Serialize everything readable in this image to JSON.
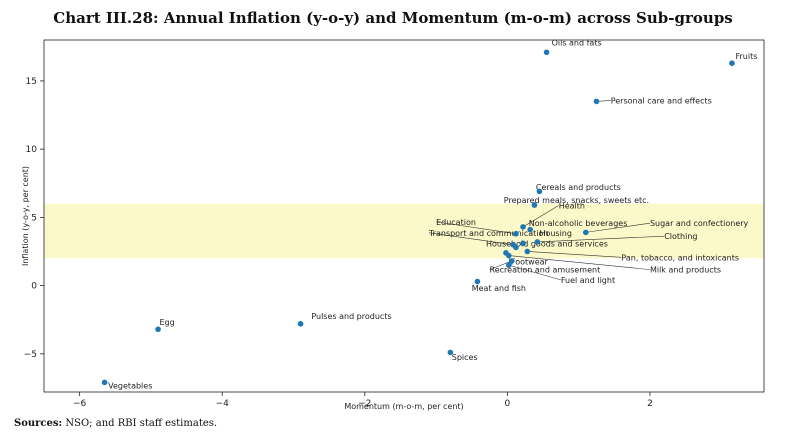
{
  "header": {
    "title": "Chart III.28: Annual Inflation (y-o-y) and Momentum (m-o-m) across Sub-groups"
  },
  "footer": {
    "sources_label": "Sources:",
    "sources_text": " NSO; and RBI staff estimates."
  },
  "colors": {
    "point": "#1f77b4",
    "band": "#fbf8c9",
    "axis": "#222222",
    "leader": "#333333"
  },
  "chart_data": {
    "type": "scatter",
    "xlabel": "Momentum (m-o-m, per cent)",
    "ylabel": "Inflation (y-o-y, per cent)",
    "xlim": [
      -6.5,
      3.6
    ],
    "ylim": [
      -7.8,
      18.0
    ],
    "xticks": [
      -6,
      -4,
      -2,
      0,
      2
    ],
    "yticks": [
      -5,
      0,
      5,
      10,
      15
    ],
    "xtick_labels": [
      "−6",
      "−4",
      "−2",
      "0",
      "2"
    ],
    "ytick_labels": [
      "−5",
      "0",
      "5",
      "10",
      "15"
    ],
    "band": [
      2,
      6
    ],
    "points": [
      {
        "name": "Oils and fats",
        "x": 0.55,
        "y": 17.1
      },
      {
        "name": "Fruits",
        "x": 3.15,
        "y": 16.3
      },
      {
        "name": "Personal care and effects",
        "x": 1.25,
        "y": 13.5
      },
      {
        "name": "Cereals and products",
        "x": 0.45,
        "y": 6.9
      },
      {
        "name": "Prepared meals, snacks, sweets etc.",
        "x": 0.38,
        "y": 5.9
      },
      {
        "name": "Health",
        "x": 0.22,
        "y": 4.3
      },
      {
        "name": "Non-alcoholic beverages",
        "x": 0.32,
        "y": 4.1
      },
      {
        "name": "Sugar and confectionery",
        "x": 1.1,
        "y": 3.9
      },
      {
        "name": "Education",
        "x": 0.12,
        "y": 3.8
      },
      {
        "name": "Clothing",
        "x": 0.42,
        "y": 3.2
      },
      {
        "name": "Transport and communication",
        "x": 0.08,
        "y": 3.0
      },
      {
        "name": "Housing",
        "x": 0.22,
        "y": 3.1
      },
      {
        "name": "Household goods and services",
        "x": 0.12,
        "y": 2.8
      },
      {
        "name": "Pan, tobacco, and intoxicants",
        "x": 0.28,
        "y": 2.5
      },
      {
        "name": "Footwear",
        "x": -0.02,
        "y": 2.4
      },
      {
        "name": "Milk and products",
        "x": 0.02,
        "y": 2.2
      },
      {
        "name": "Recreation and amusement",
        "x": 0.06,
        "y": 1.8
      },
      {
        "name": "Fuel and light",
        "x": 0.02,
        "y": 1.5
      },
      {
        "name": "Meat and fish",
        "x": -0.42,
        "y": 0.3
      },
      {
        "name": "Pulses and products",
        "x": -2.9,
        "y": -2.8
      },
      {
        "name": "Egg",
        "x": -4.9,
        "y": -3.2
      },
      {
        "name": "Spices",
        "x": -0.8,
        "y": -4.9
      },
      {
        "name": "Vegetables",
        "x": -5.65,
        "y": -7.1
      }
    ],
    "labels": [
      {
        "name": "Oils and fats",
        "lx": 0.62,
        "ly": 17.6,
        "leader": false
      },
      {
        "name": "Fruits",
        "lx": 3.2,
        "ly": 16.6,
        "leader": false
      },
      {
        "name": "Personal care and effects",
        "lx": 1.45,
        "ly": 13.35,
        "leader": true
      },
      {
        "name": "Cereals and products",
        "lx": 0.4,
        "ly": 7.0,
        "leader": false
      },
      {
        "name": "Prepared meals, snacks, sweets etc.",
        "lx": -0.05,
        "ly": 6.05,
        "leader": false
      },
      {
        "name": "Health",
        "lx": 0.72,
        "ly": 5.65,
        "leader": true
      },
      {
        "name": "Non-alcoholic beverages",
        "lx": 0.3,
        "ly": 4.35,
        "leader": false
      },
      {
        "name": "Sugar and confectionery",
        "lx": 2.0,
        "ly": 4.35,
        "leader": true
      },
      {
        "name": "Education",
        "lx": -1.0,
        "ly": 4.45,
        "leader": true
      },
      {
        "name": "Clothing",
        "lx": 2.2,
        "ly": 3.4,
        "leader": true
      },
      {
        "name": "Transport and communication",
        "lx": -1.1,
        "ly": 3.65,
        "leader": true
      },
      {
        "name": "Housing",
        "lx": 0.45,
        "ly": 3.65,
        "leader": false
      },
      {
        "name": "Household goods and services",
        "lx": -0.3,
        "ly": 2.85,
        "leader": false
      },
      {
        "name": "Pan, tobacco, and intoxicants",
        "lx": 1.6,
        "ly": 1.85,
        "leader": true
      },
      {
        "name": "Footwear",
        "lx": 0.05,
        "ly": 1.55,
        "leader": true
      },
      {
        "name": "Milk and products",
        "lx": 2.0,
        "ly": 0.95,
        "leader": true
      },
      {
        "name": "Recreation and amusement",
        "lx": -0.25,
        "ly": 0.95,
        "leader": true
      },
      {
        "name": "Fuel and light",
        "lx": 0.75,
        "ly": 0.2,
        "leader": true
      },
      {
        "name": "Meat and fish",
        "lx": -0.5,
        "ly": -0.4,
        "leader": false
      },
      {
        "name": "Pulses and products",
        "lx": -2.75,
        "ly": -2.45,
        "leader": false
      },
      {
        "name": "Egg",
        "lx": -4.88,
        "ly": -2.9,
        "leader": false
      },
      {
        "name": "Spices",
        "lx": -0.78,
        "ly": -5.45,
        "leader": false
      },
      {
        "name": "Vegetables",
        "lx": -5.6,
        "ly": -7.55,
        "leader": false
      }
    ]
  }
}
